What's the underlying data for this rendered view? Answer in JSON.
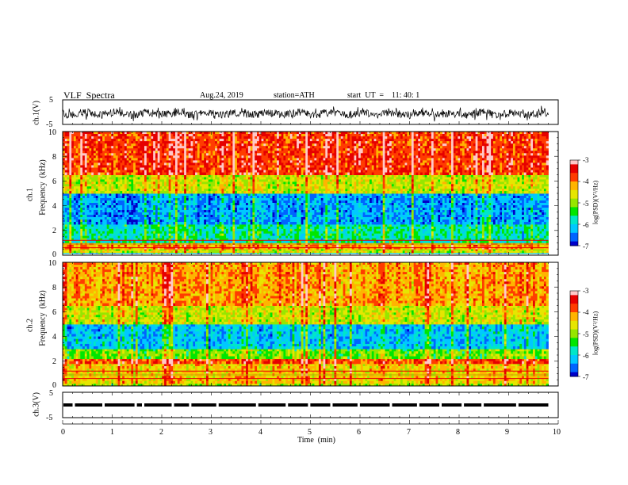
{
  "header": {
    "title": "VLF  Spectra",
    "date": "Aug.24, 2019",
    "station": "station=ATH",
    "start_ut": "start  UT  =    11: 40: 1"
  },
  "colors": {
    "frame": "#000000",
    "colormap": [
      "#000000",
      "#0000c8",
      "#0064ff",
      "#00c8ff",
      "#00e6c8",
      "#00e600",
      "#96e600",
      "#e6e600",
      "#ffb400",
      "#ff3c00",
      "#e60000",
      "#ffc8c8",
      "#ffffff"
    ]
  },
  "chart_data": [
    {
      "id": "ch1-waveform",
      "type": "line",
      "ylabel": "ch.1(V)",
      "yticks": [
        "5",
        "-5"
      ],
      "ylim": [
        -5,
        5
      ],
      "xlim": [
        0,
        10
      ],
      "series": [
        {
          "baseline": 0,
          "amplitude_approx": 2
        }
      ],
      "grid": false
    },
    {
      "id": "ch1-spectrogram",
      "type": "heatmap",
      "panel_label": "ch.1",
      "ylabel": "Frequency  (kHz)",
      "yticks": [
        "0",
        "2",
        "4",
        "6",
        "8",
        "10"
      ],
      "ylim": [
        0,
        10
      ],
      "xlim": [
        0,
        9.8
      ],
      "colorbar": {
        "label": "log(PSD)(V²/Hz)",
        "ticks": [
          "-3",
          "-4",
          "-5",
          "-6",
          "-7"
        ],
        "range": [
          -7,
          -3
        ]
      },
      "bands": [
        {
          "f_range": [
            0.0,
            0.2
          ],
          "level": -6.2
        },
        {
          "f_range": [
            0.2,
            0.5
          ],
          "level": -4.8
        },
        {
          "f_range": [
            0.5,
            1.0
          ],
          "level": -4.2
        },
        {
          "f_range": [
            1.0,
            2.5
          ],
          "level": -5.8
        },
        {
          "f_range": [
            2.5,
            5.0
          ],
          "level": -6.4
        },
        {
          "f_range": [
            5.0,
            6.5
          ],
          "level": -4.8
        },
        {
          "f_range": [
            6.5,
            10.0
          ],
          "level": -3.7
        }
      ],
      "data_gap_kHz": [
        0.0,
        0.1
      ]
    },
    {
      "id": "ch2-spectrogram",
      "type": "heatmap",
      "panel_label": "ch.2",
      "ylabel": "Frequency  (kHz)",
      "yticks": [
        "0",
        "2",
        "4",
        "6",
        "8",
        "10"
      ],
      "ylim": [
        0,
        10
      ],
      "xlim": [
        0,
        9.8
      ],
      "colorbar": {
        "label": "log(PSD)(V²/Hz)",
        "ticks": [
          "-3",
          "-4",
          "-5",
          "-6",
          "-7"
        ],
        "range": [
          -7,
          -3
        ]
      },
      "bands": [
        {
          "f_range": [
            0.0,
            0.2
          ],
          "level": -5.0
        },
        {
          "f_range": [
            0.2,
            1.8
          ],
          "level": -4.5
        },
        {
          "f_range": [
            1.8,
            2.2
          ],
          "level": -3.8
        },
        {
          "f_range": [
            2.2,
            3.0
          ],
          "level": -5.2
        },
        {
          "f_range": [
            3.0,
            5.0
          ],
          "level": -6.2
        },
        {
          "f_range": [
            5.0,
            6.5
          ],
          "level": -4.8
        },
        {
          "f_range": [
            6.5,
            10.0
          ],
          "level": -4.2
        }
      ]
    },
    {
      "id": "ch3-waveform",
      "type": "line",
      "ylabel": "ch.3(V)",
      "yticks": [
        "5",
        "-5"
      ],
      "ylim": [
        -5,
        5
      ],
      "xlim": [
        0,
        10
      ],
      "series": [
        {
          "baseline": 0,
          "pattern": "pulse-train"
        }
      ],
      "xlabel": "Time  (min)",
      "xticks": [
        "0",
        "1",
        "2",
        "3",
        "4",
        "5",
        "6",
        "7",
        "8",
        "9",
        "10"
      ]
    }
  ]
}
